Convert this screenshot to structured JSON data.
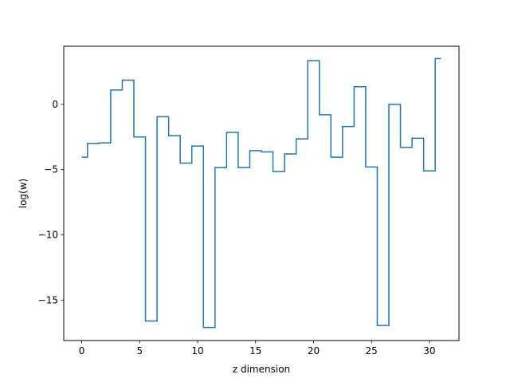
{
  "chart_data": {
    "type": "line",
    "step": "post",
    "xlabel": "z dimension",
    "ylabel": "log(w)",
    "xlim": [
      -1.55,
      32.55
    ],
    "ylim": [
      -18.1,
      4.45
    ],
    "x_ticks": [
      0,
      5,
      10,
      15,
      20,
      25,
      30
    ],
    "y_ticks": [
      0,
      -5,
      -10,
      -15
    ],
    "x_tick_labels": [
      "0",
      "5",
      "10",
      "15",
      "20",
      "25",
      "30"
    ],
    "y_tick_labels": [
      "0",
      "−5",
      "−10",
      "−15"
    ],
    "grid": false,
    "series": [
      {
        "color": "#1f77b4",
        "x": [
          0,
          0.5,
          1.5,
          2.5,
          3.5,
          4.5,
          5.5,
          6.5,
          7.5,
          8.5,
          9.5,
          10.5,
          11.5,
          12.5,
          13.5,
          14.5,
          15.5,
          16.5,
          17.5,
          18.5,
          19.5,
          20.5,
          21.5,
          22.5,
          23.5,
          24.5,
          25.5,
          26.5,
          27.5,
          28.5,
          29.5,
          30.5,
          31
        ],
        "y": [
          -4.05,
          -3.0,
          -2.95,
          1.1,
          1.85,
          -2.5,
          -16.6,
          -0.95,
          -2.4,
          -4.5,
          -3.2,
          -17.1,
          -4.85,
          -2.15,
          -4.85,
          -3.55,
          -3.65,
          -5.15,
          -3.8,
          -2.65,
          3.35,
          -0.8,
          -4.05,
          -1.7,
          1.35,
          -4.8,
          -16.95,
          0.0,
          -3.3,
          -2.6,
          -5.1,
          3.5,
          3.5
        ]
      }
    ]
  }
}
